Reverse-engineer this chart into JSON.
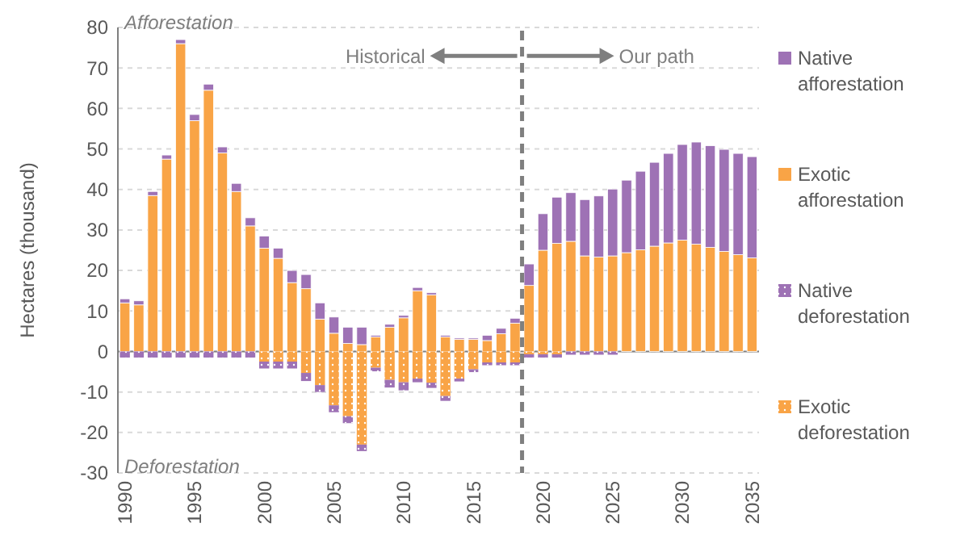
{
  "chart_data": {
    "type": "bar",
    "stacked": true,
    "ylabel": "Hectares (thousand)",
    "x": [
      1990,
      1991,
      1992,
      1993,
      1994,
      1995,
      1996,
      1997,
      1998,
      1999,
      2000,
      2001,
      2002,
      2003,
      2004,
      2005,
      2006,
      2007,
      2008,
      2009,
      2010,
      2011,
      2012,
      2013,
      2014,
      2015,
      2016,
      2017,
      2018,
      2019,
      2020,
      2021,
      2022,
      2023,
      2024,
      2025,
      2026,
      2027,
      2028,
      2029,
      2030,
      2031,
      2032,
      2033,
      2034,
      2035
    ],
    "xlim": [
      1989.5,
      2035.5
    ],
    "xticks": [
      1990,
      1995,
      2000,
      2005,
      2010,
      2015,
      2020,
      2025,
      2030,
      2035
    ],
    "ylim": [
      -30,
      80
    ],
    "yticks": [
      -30,
      -20,
      -10,
      0,
      10,
      20,
      30,
      40,
      50,
      60,
      70,
      80
    ],
    "grid": "y",
    "legend": "right",
    "series": [
      {
        "name": "Exotic afforestation",
        "color": "#f9a446",
        "values": [
          12,
          11.5,
          38.5,
          47.5,
          76,
          57,
          64.5,
          49,
          39.5,
          31,
          25.5,
          23,
          17,
          15.5,
          8,
          4.5,
          2,
          1.7,
          3.6,
          6,
          8.3,
          15,
          14,
          3.6,
          3,
          3,
          2.7,
          4.4,
          7,
          16.3,
          25,
          26.7,
          27.2,
          23.6,
          23.3,
          23.6,
          24.4,
          25.1,
          26,
          26.8,
          27.5,
          26.5,
          25.7,
          24.7,
          23.9,
          23.1
        ]
      },
      {
        "name": "Native afforestation",
        "color": "#9e72b5",
        "values": [
          1,
          1,
          1,
          1,
          1,
          1.5,
          1.5,
          1.5,
          2,
          2,
          3,
          2.5,
          3,
          3.5,
          4,
          4,
          4,
          4.3,
          0.4,
          0.7,
          0.6,
          0.8,
          0.5,
          0.4,
          0.3,
          0.3,
          1.3,
          1.3,
          1.2,
          5.3,
          9,
          11.4,
          12,
          13.9,
          15.1,
          16.5,
          17.9,
          19.4,
          20.7,
          22.1,
          23.6,
          25.2,
          25.1,
          25.2,
          25,
          25
        ]
      },
      {
        "name": "Exotic deforestation",
        "color": "#f9a446",
        "values": [
          0,
          0,
          0,
          0,
          0,
          0,
          0,
          0,
          0,
          0,
          -2.5,
          -2.5,
          -2.5,
          -5.3,
          -8.3,
          -13.3,
          -16,
          -23,
          -4,
          -7,
          -7.6,
          -6.7,
          -7.7,
          -11,
          -6.7,
          -4.4,
          -2.7,
          -2.7,
          -2.7,
          -0.7,
          -0.7,
          -0.7,
          0,
          0,
          0,
          0,
          0,
          0,
          0,
          0,
          0,
          0,
          0,
          0,
          0,
          0
        ]
      },
      {
        "name": "Native deforestation",
        "color": "#9e72b5",
        "values": [
          -1.5,
          -1.5,
          -1.5,
          -1.5,
          -1.5,
          -1.5,
          -1.5,
          -1.5,
          -1.5,
          -1.5,
          -1.7,
          -1.7,
          -1.7,
          -2,
          -1.7,
          -1.7,
          -1.7,
          -1.6,
          -0.9,
          -1.9,
          -2,
          -0.9,
          -1.3,
          -1.2,
          -0.7,
          -0.7,
          -0.7,
          -0.7,
          -0.7,
          -0.8,
          -0.8,
          -0.8,
          -0.8,
          -0.8,
          -0.8,
          -0.8,
          0,
          0,
          0,
          0,
          0,
          0,
          0,
          0,
          0,
          0
        ]
      }
    ],
    "ref_lines": [
      {
        "axis": "x",
        "value": 2018.5,
        "color": "#7f7f7f",
        "line_style": "dashed"
      }
    ],
    "annotations": [
      "Afforestation",
      "Deforestation",
      {
        "text": "Historical",
        "x": 2018.5,
        "y": 73
      },
      {
        "text": "Our path",
        "x": 2018.5,
        "y": 73
      }
    ]
  }
}
